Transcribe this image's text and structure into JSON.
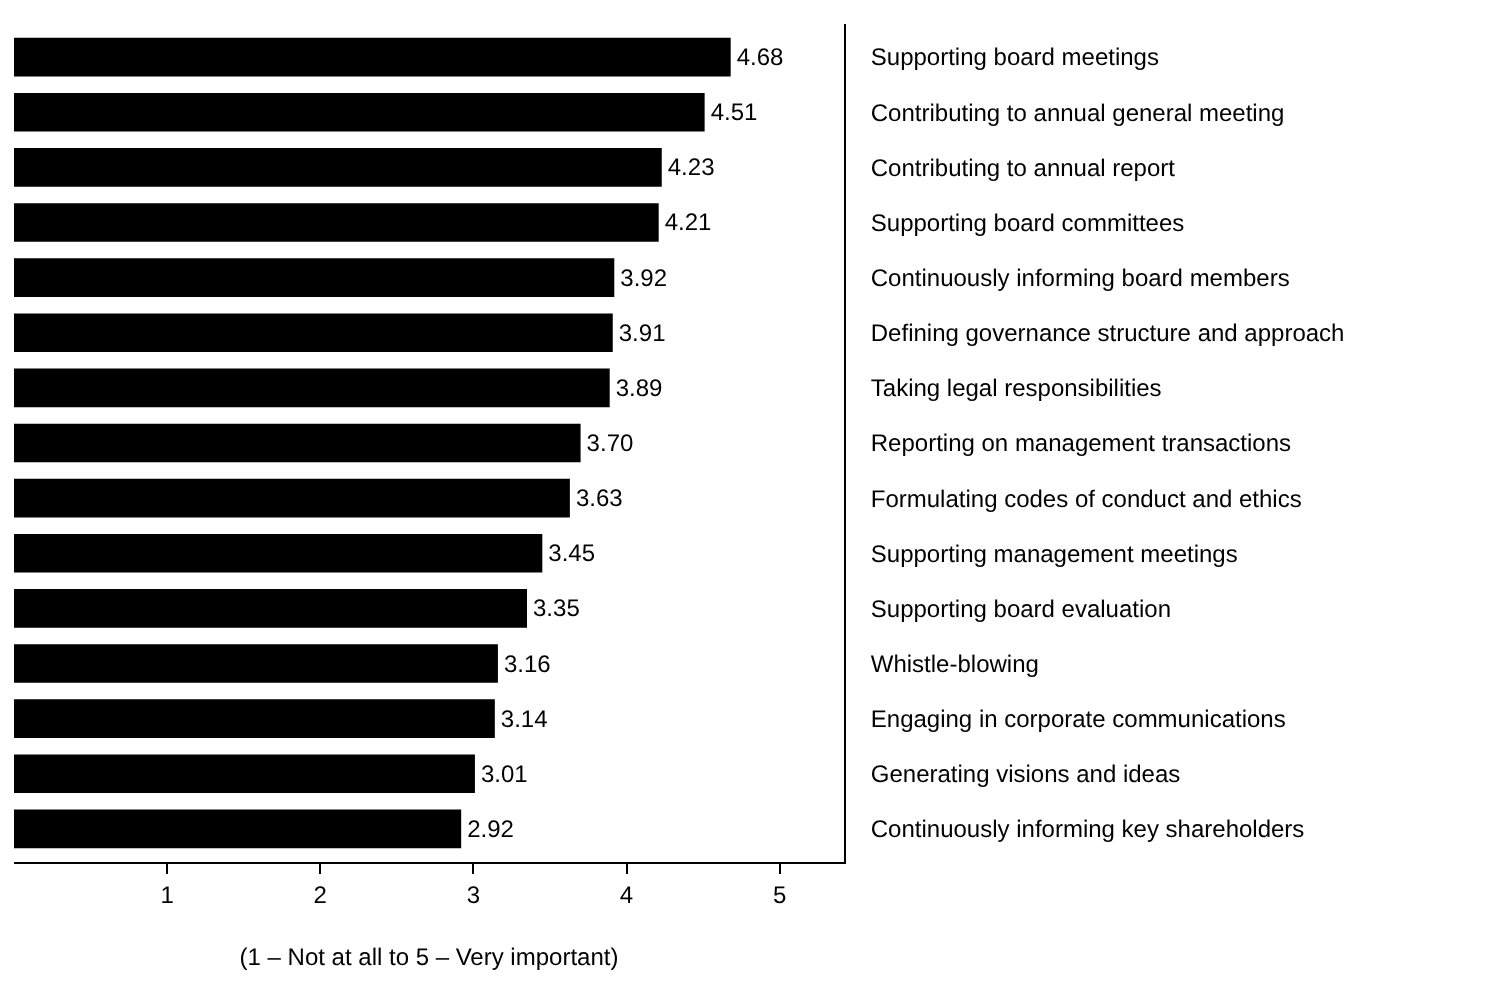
{
  "chart_data": {
    "type": "bar",
    "orientation": "horizontal",
    "xlabel": "(1 – Not at all to 5 – Very important)",
    "categories": [
      "Supporting board meetings",
      "Contributing to annual general meeting",
      "Contributing to annual report",
      "Supporting board committees",
      "Continuously informing board members",
      "Defining governance structure and approach",
      "Taking legal responsibilities",
      "Reporting on management transactions",
      "Formulating codes of conduct and ethics",
      "Supporting management meetings",
      "Supporting board evaluation",
      "Whistle-blowing",
      "Engaging in corporate communications",
      "Generating visions and ideas",
      "Continuously informing key shareholders"
    ],
    "values": [
      4.68,
      4.51,
      4.23,
      4.21,
      3.92,
      3.91,
      3.89,
      3.7,
      3.63,
      3.45,
      3.35,
      3.16,
      3.14,
      3.01,
      2.92
    ],
    "value_labels": [
      "4.68",
      "4.51",
      "4.23",
      "4.21",
      "3.92",
      "3.91",
      "3.89",
      "3.70",
      "3.63",
      "3.45",
      "3.35",
      "3.16",
      "3.14",
      "3.01",
      "2.92"
    ],
    "color": "#000000",
    "xlim": [
      0,
      5.42
    ],
    "xticks": [
      1,
      2,
      3,
      4,
      5
    ]
  }
}
